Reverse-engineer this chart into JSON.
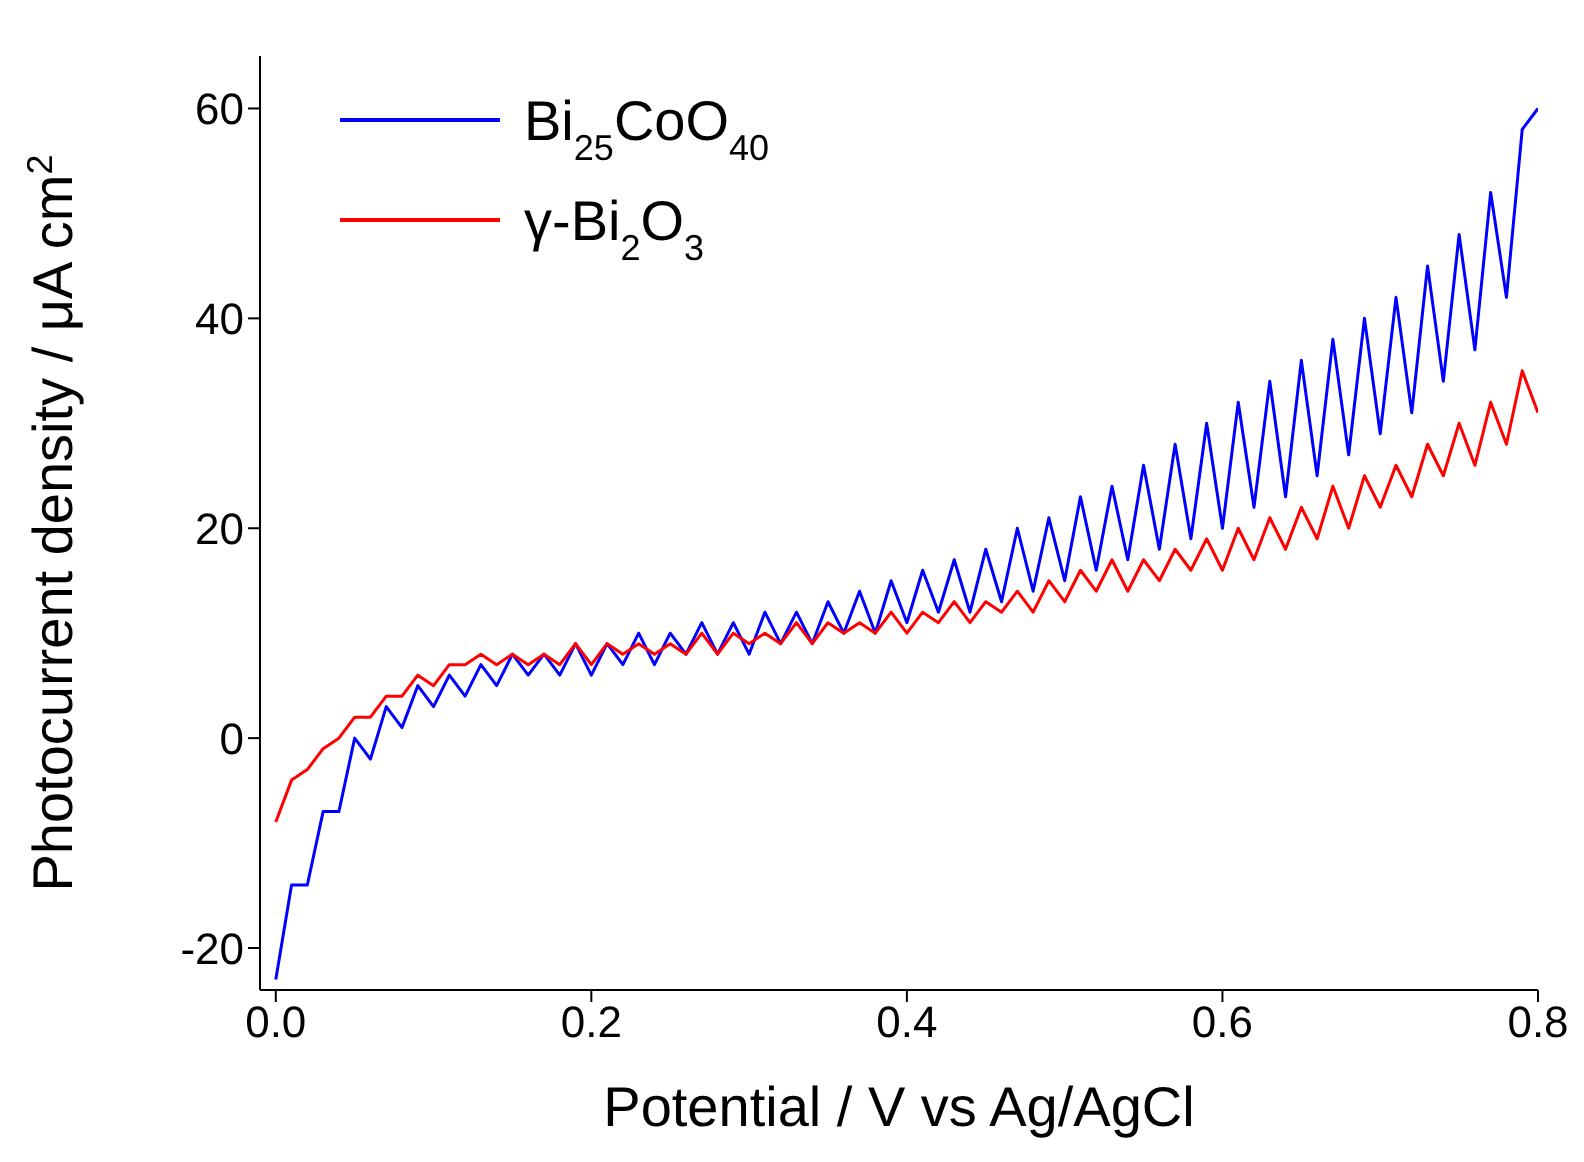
{
  "chart_data": {
    "type": "line",
    "xlabel": "Potential / V vs Ag/AgCl",
    "ylabel": "Photocurrent density / μA cm$^{2}$",
    "x": [
      0,
      0.01,
      0.02,
      0.03,
      0.04,
      0.05,
      0.06,
      0.07,
      0.08,
      0.09,
      0.1,
      0.11,
      0.12,
      0.13,
      0.14,
      0.15,
      0.16,
      0.17,
      0.18,
      0.19,
      0.2,
      0.21,
      0.22,
      0.23,
      0.24,
      0.25,
      0.26,
      0.27,
      0.28,
      0.29,
      0.3,
      0.31,
      0.32,
      0.33,
      0.34,
      0.35,
      0.36,
      0.37,
      0.38,
      0.39,
      0.4,
      0.41,
      0.42,
      0.43,
      0.44,
      0.45,
      0.46,
      0.47,
      0.48,
      0.49,
      0.5,
      0.51,
      0.52,
      0.53,
      0.54,
      0.55,
      0.56,
      0.57,
      0.58,
      0.59,
      0.6,
      0.61,
      0.62,
      0.63,
      0.64,
      0.65,
      0.66,
      0.67,
      0.68,
      0.69,
      0.7,
      0.71,
      0.72,
      0.73,
      0.74,
      0.75,
      0.76,
      0.77,
      0.78,
      0.79,
      0.8
    ],
    "series": [
      {
        "name": "Bi$_{25}$CoO$_{40}$",
        "color": "#0000ff",
        "values": [
          -23,
          -14,
          -14,
          -7,
          -7,
          0,
          -2,
          3,
          1,
          5,
          3,
          6,
          4,
          7,
          5,
          8,
          6,
          8,
          6,
          9,
          6,
          9,
          7,
          10,
          7,
          10,
          8,
          11,
          8,
          11,
          8,
          12,
          9,
          12,
          9,
          13,
          10,
          14,
          10,
          15,
          11,
          16,
          12,
          17,
          12,
          18,
          13,
          20,
          14,
          21,
          15,
          23,
          16,
          24,
          17,
          26,
          18,
          28,
          19,
          30,
          20,
          32,
          22,
          34,
          23,
          36,
          25,
          38,
          27,
          40,
          29,
          42,
          31,
          45,
          34,
          48,
          37,
          52,
          42,
          58,
          60
        ]
      },
      {
        "name": "γ-Bi$_{2}$O$_{3}$",
        "color": "#ff0000",
        "values": [
          -8,
          -4,
          -3,
          -1,
          0,
          2,
          2,
          4,
          4,
          6,
          5,
          7,
          7,
          8,
          7,
          8,
          7,
          8,
          7,
          9,
          7,
          9,
          8,
          9,
          8,
          9,
          8,
          10,
          8,
          10,
          9,
          10,
          9,
          11,
          9,
          11,
          10,
          11,
          10,
          12,
          10,
          12,
          11,
          13,
          11,
          13,
          12,
          14,
          12,
          15,
          13,
          16,
          14,
          17,
          14,
          17,
          15,
          18,
          16,
          19,
          16,
          20,
          17,
          21,
          18,
          22,
          19,
          24,
          20,
          25,
          22,
          26,
          23,
          28,
          25,
          30,
          26,
          32,
          28,
          35,
          31
        ]
      }
    ],
    "xlim": [
      -0.01,
      0.8
    ],
    "xticks": [
      {
        "value": 0,
        "label": "0.0"
      },
      0.2,
      0.4,
      0.6,
      0.8
    ],
    "ylim": [
      -24,
      65
    ],
    "yticks": [
      -20,
      0,
      20,
      40,
      60
    ],
    "legend": "top left",
    "marker": "none",
    "line_style": "solid"
  }
}
